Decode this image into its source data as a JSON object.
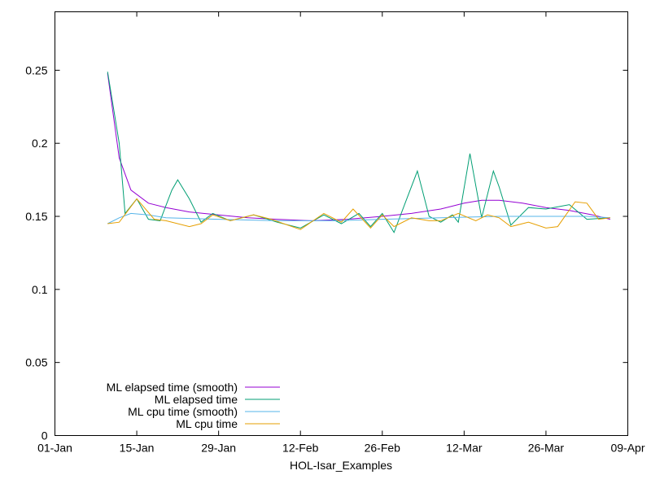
{
  "chart_data": {
    "type": "line",
    "title": "",
    "xlabel": "HOL-Isar_Examples",
    "ylabel": "",
    "xlim": [
      "2022-01-01",
      "2022-04-09"
    ],
    "ylim": [
      0,
      0.29
    ],
    "x_ticks": [
      {
        "date": "2022-01-01",
        "label": "01-Jan"
      },
      {
        "date": "2022-01-15",
        "label": "15-Jan"
      },
      {
        "date": "2022-01-29",
        "label": "29-Jan"
      },
      {
        "date": "2022-02-12",
        "label": "12-Feb"
      },
      {
        "date": "2022-02-26",
        "label": "26-Feb"
      },
      {
        "date": "2022-03-12",
        "label": "12-Mar"
      },
      {
        "date": "2022-03-26",
        "label": "26-Mar"
      },
      {
        "date": "2022-04-09",
        "label": "09-Apr"
      }
    ],
    "y_ticks": [
      {
        "value": 0,
        "label": "0"
      },
      {
        "value": 0.05,
        "label": "0.05"
      },
      {
        "value": 0.1,
        "label": "0.1"
      },
      {
        "value": 0.15,
        "label": "0.15"
      },
      {
        "value": 0.2,
        "label": "0.2"
      },
      {
        "value": 0.25,
        "label": "0.25"
      }
    ],
    "grid": false,
    "legend_position": "bottom-left",
    "series": [
      {
        "name": "ML elapsed time (smooth)",
        "color": "#9400d3",
        "points": [
          [
            "2022-01-10",
            0.248
          ],
          [
            "2022-01-12",
            0.19
          ],
          [
            "2022-01-14",
            0.168
          ],
          [
            "2022-01-17",
            0.159
          ],
          [
            "2022-01-20",
            0.156
          ],
          [
            "2022-01-24",
            0.153
          ],
          [
            "2022-01-29",
            0.151
          ],
          [
            "2022-02-03",
            0.149
          ],
          [
            "2022-02-08",
            0.148
          ],
          [
            "2022-02-14",
            0.147
          ],
          [
            "2022-02-20",
            0.148
          ],
          [
            "2022-02-26",
            0.15
          ],
          [
            "2022-03-03",
            0.152
          ],
          [
            "2022-03-08",
            0.155
          ],
          [
            "2022-03-12",
            0.159
          ],
          [
            "2022-03-15",
            0.161
          ],
          [
            "2022-03-18",
            0.161
          ],
          [
            "2022-03-22",
            0.159
          ],
          [
            "2022-03-26",
            0.156
          ],
          [
            "2022-03-30",
            0.154
          ],
          [
            "2022-04-03",
            0.151
          ],
          [
            "2022-04-06",
            0.148
          ]
        ]
      },
      {
        "name": "ML elapsed time",
        "color": "#009e73",
        "points": [
          [
            "2022-01-10",
            0.249
          ],
          [
            "2022-01-12",
            0.2
          ],
          [
            "2022-01-13",
            0.152
          ],
          [
            "2022-01-15",
            0.162
          ],
          [
            "2022-01-17",
            0.148
          ],
          [
            "2022-01-19",
            0.147
          ],
          [
            "2022-01-21",
            0.168
          ],
          [
            "2022-01-22",
            0.175
          ],
          [
            "2022-01-24",
            0.162
          ],
          [
            "2022-01-26",
            0.146
          ],
          [
            "2022-01-28",
            0.152
          ],
          [
            "2022-01-31",
            0.147
          ],
          [
            "2022-02-04",
            0.151
          ],
          [
            "2022-02-08",
            0.146
          ],
          [
            "2022-02-12",
            0.142
          ],
          [
            "2022-02-16",
            0.151
          ],
          [
            "2022-02-19",
            0.145
          ],
          [
            "2022-02-22",
            0.152
          ],
          [
            "2022-02-24",
            0.143
          ],
          [
            "2022-02-26",
            0.152
          ],
          [
            "2022-02-28",
            0.139
          ],
          [
            "2022-03-02",
            0.16
          ],
          [
            "2022-03-04",
            0.181
          ],
          [
            "2022-03-06",
            0.15
          ],
          [
            "2022-03-08",
            0.146
          ],
          [
            "2022-03-10",
            0.151
          ],
          [
            "2022-03-11",
            0.146
          ],
          [
            "2022-03-13",
            0.193
          ],
          [
            "2022-03-15",
            0.149
          ],
          [
            "2022-03-17",
            0.181
          ],
          [
            "2022-03-18",
            0.17
          ],
          [
            "2022-03-20",
            0.144
          ],
          [
            "2022-03-23",
            0.156
          ],
          [
            "2022-03-26",
            0.155
          ],
          [
            "2022-03-30",
            0.158
          ],
          [
            "2022-04-02",
            0.148
          ],
          [
            "2022-04-06",
            0.149
          ]
        ]
      },
      {
        "name": "ML cpu time (smooth)",
        "color": "#56b4e9",
        "points": [
          [
            "2022-01-10",
            0.145
          ],
          [
            "2022-01-12",
            0.149
          ],
          [
            "2022-01-14",
            0.152
          ],
          [
            "2022-01-17",
            0.151
          ],
          [
            "2022-01-20",
            0.149
          ],
          [
            "2022-01-29",
            0.148
          ],
          [
            "2022-02-08",
            0.147
          ],
          [
            "2022-02-18",
            0.147
          ],
          [
            "2022-02-26",
            0.148
          ],
          [
            "2022-03-08",
            0.149
          ],
          [
            "2022-03-18",
            0.15
          ],
          [
            "2022-03-26",
            0.15
          ],
          [
            "2022-04-02",
            0.15
          ],
          [
            "2022-04-06",
            0.149
          ]
        ]
      },
      {
        "name": "ML cpu time",
        "color": "#e69f00",
        "points": [
          [
            "2022-01-10",
            0.145
          ],
          [
            "2022-01-12",
            0.146
          ],
          [
            "2022-01-15",
            0.162
          ],
          [
            "2022-01-18",
            0.148
          ],
          [
            "2022-01-20",
            0.147
          ],
          [
            "2022-01-24",
            0.143
          ],
          [
            "2022-01-26",
            0.145
          ],
          [
            "2022-01-28",
            0.151
          ],
          [
            "2022-01-31",
            0.147
          ],
          [
            "2022-02-04",
            0.151
          ],
          [
            "2022-02-07",
            0.148
          ],
          [
            "2022-02-12",
            0.141
          ],
          [
            "2022-02-16",
            0.152
          ],
          [
            "2022-02-19",
            0.146
          ],
          [
            "2022-02-21",
            0.155
          ],
          [
            "2022-02-24",
            0.142
          ],
          [
            "2022-02-26",
            0.151
          ],
          [
            "2022-02-28",
            0.143
          ],
          [
            "2022-03-03",
            0.149
          ],
          [
            "2022-03-06",
            0.147
          ],
          [
            "2022-03-08",
            0.147
          ],
          [
            "2022-03-11",
            0.152
          ],
          [
            "2022-03-14",
            0.147
          ],
          [
            "2022-03-16",
            0.151
          ],
          [
            "2022-03-18",
            0.149
          ],
          [
            "2022-03-20",
            0.143
          ],
          [
            "2022-03-23",
            0.146
          ],
          [
            "2022-03-26",
            0.142
          ],
          [
            "2022-03-28",
            0.143
          ],
          [
            "2022-03-31",
            0.16
          ],
          [
            "2022-04-02",
            0.159
          ],
          [
            "2022-04-04",
            0.148
          ],
          [
            "2022-04-06",
            0.149
          ]
        ]
      }
    ]
  }
}
